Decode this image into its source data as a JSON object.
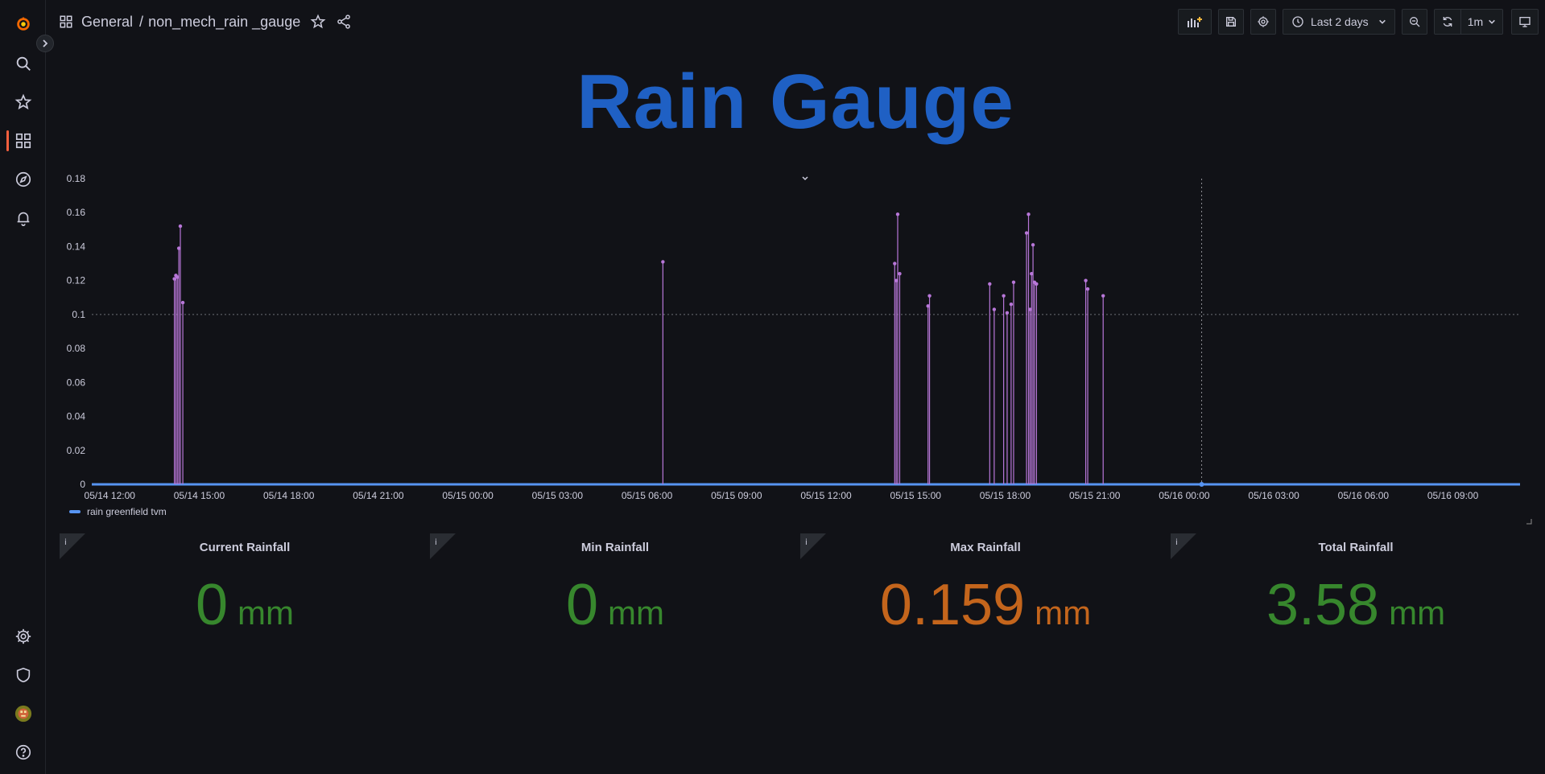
{
  "sidebar": {
    "items": [
      {
        "name": "grafana-logo-icon"
      },
      {
        "name": "search-icon"
      },
      {
        "name": "star-icon"
      },
      {
        "name": "dashboards-icon",
        "active": true
      },
      {
        "name": "explore-icon"
      },
      {
        "name": "bell-icon"
      },
      {
        "name": "gear-icon"
      },
      {
        "name": "shield-icon"
      },
      {
        "name": "avatar"
      },
      {
        "name": "help-icon"
      }
    ]
  },
  "header": {
    "folder": "General",
    "separator": "/",
    "dashboard": "non_mech_rain _gauge"
  },
  "toolbar": {
    "time_range": "Last 2 days",
    "refresh_interval": "1m"
  },
  "title": "Rain Gauge",
  "chart_data": {
    "type": "line",
    "title": "",
    "xlabel": "",
    "ylabel": "",
    "x_range": [
      "05/14 11:24",
      "05/16 11:15"
    ],
    "ylim": [
      0,
      0.18
    ],
    "yticks": [
      "0",
      "0.02",
      "0.04",
      "0.06",
      "0.08",
      "0.1",
      "0.12",
      "0.14",
      "0.16",
      "0.18"
    ],
    "xticks": [
      "05/14 12:00",
      "05/14 15:00",
      "05/14 18:00",
      "05/14 21:00",
      "05/15 00:00",
      "05/15 03:00",
      "05/15 06:00",
      "05/15 09:00",
      "05/15 12:00",
      "05/15 15:00",
      "05/15 18:00",
      "05/15 21:00",
      "05/16 00:00",
      "05/16 03:00",
      "05/16 06:00",
      "05/16 09:00"
    ],
    "threshold": 0.1,
    "crosshair": "05/16 00:35",
    "legend": "bottom-left",
    "series": [
      {
        "name": "rain greenfield tvm",
        "color": "#5794f2",
        "point_color": "#b877d9",
        "points": [
          {
            "x": "05/14 14:10",
            "y": 0.121
          },
          {
            "x": "05/14 14:13",
            "y": 0.123
          },
          {
            "x": "05/14 14:16",
            "y": 0.122
          },
          {
            "x": "05/14 14:19",
            "y": 0.139
          },
          {
            "x": "05/14 14:22",
            "y": 0.152
          },
          {
            "x": "05/14 14:27",
            "y": 0.107
          },
          {
            "x": "05/15 06:32",
            "y": 0.131
          },
          {
            "x": "05/15 14:18",
            "y": 0.13
          },
          {
            "x": "05/15 14:21",
            "y": 0.12
          },
          {
            "x": "05/15 14:24",
            "y": 0.159
          },
          {
            "x": "05/15 14:28",
            "y": 0.124
          },
          {
            "x": "05/15 15:25",
            "y": 0.105
          },
          {
            "x": "05/15 15:28",
            "y": 0.111
          },
          {
            "x": "05/15 17:29",
            "y": 0.118
          },
          {
            "x": "05/15 17:38",
            "y": 0.103
          },
          {
            "x": "05/15 17:57",
            "y": 0.111
          },
          {
            "x": "05/15 18:04",
            "y": 0.101
          },
          {
            "x": "05/15 18:12",
            "y": 0.106
          },
          {
            "x": "05/15 18:17",
            "y": 0.119
          },
          {
            "x": "05/15 18:43",
            "y": 0.148
          },
          {
            "x": "05/15 18:47",
            "y": 0.159
          },
          {
            "x": "05/15 18:50",
            "y": 0.103
          },
          {
            "x": "05/15 18:53",
            "y": 0.124
          },
          {
            "x": "05/15 18:56",
            "y": 0.141
          },
          {
            "x": "05/15 18:59",
            "y": 0.119
          },
          {
            "x": "05/15 19:03",
            "y": 0.118
          },
          {
            "x": "05/15 20:42",
            "y": 0.12
          },
          {
            "x": "05/15 20:46",
            "y": 0.115
          },
          {
            "x": "05/15 21:17",
            "y": 0.111
          }
        ]
      }
    ]
  },
  "stats": [
    {
      "title": "Current Rainfall",
      "value": "0",
      "unit": "mm",
      "color": "#37872d"
    },
    {
      "title": "Min Rainfall",
      "value": "0",
      "unit": "mm",
      "color": "#37872d"
    },
    {
      "title": "Max Rainfall",
      "value": "0.159",
      "unit": "mm",
      "color": "#c4651c"
    },
    {
      "title": "Total Rainfall",
      "value": "3.58",
      "unit": "mm",
      "color": "#37872d"
    }
  ]
}
